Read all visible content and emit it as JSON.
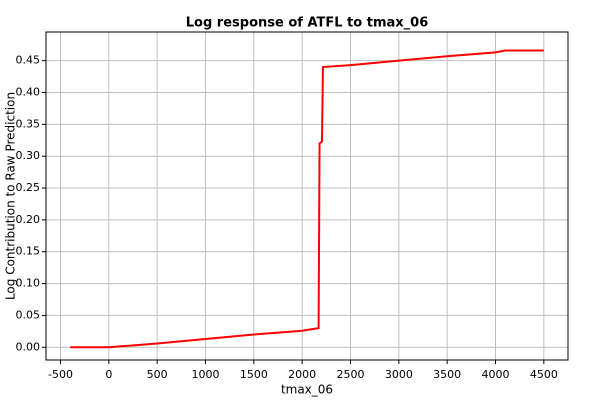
{
  "chart_data": {
    "type": "line",
    "title": "Log response of ATFL to tmax_06",
    "xlabel": "tmax_06",
    "ylabel": "Log Contribution to Raw Prediction",
    "x": [
      -400,
      0,
      500,
      1000,
      1500,
      2000,
      2170,
      2180,
      2205,
      2215,
      2500,
      3000,
      3500,
      4000,
      4100,
      4500
    ],
    "series": [
      {
        "name": "ATFL",
        "color": "#ff0000",
        "values": [
          0,
          0,
          0.006,
          0.013,
          0.02,
          0.026,
          0.03,
          0.32,
          0.323,
          0.44,
          0.443,
          0.45,
          0.457,
          0.463,
          0.466,
          0.466
        ]
      }
    ],
    "xlim": [
      -650,
      4750
    ],
    "xticks": [
      -500,
      0,
      500,
      1000,
      1500,
      2000,
      2500,
      3000,
      3500,
      4000,
      4500
    ],
    "ylim": [
      -0.02,
      0.495
    ],
    "yticks": [
      {
        "value": 0,
        "label": "0.00"
      },
      {
        "value": 0.05,
        "label": "0.05"
      },
      {
        "value": 0.1,
        "label": "0.10"
      },
      {
        "value": 0.15,
        "label": "0.15"
      },
      {
        "value": 0.2,
        "label": "0.20"
      },
      {
        "value": 0.25,
        "label": "0.25"
      },
      {
        "value": 0.3,
        "label": "0.30"
      },
      {
        "value": 0.35,
        "label": "0.35"
      },
      {
        "value": 0.4,
        "label": "0.40"
      },
      {
        "value": 0.45,
        "label": "0.45"
      }
    ],
    "grid": true
  }
}
